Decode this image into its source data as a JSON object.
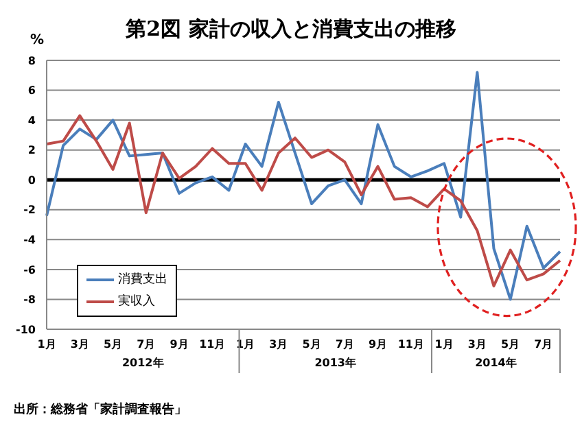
{
  "chart_data": {
    "type": "line",
    "title": "第2図  家計の収入と消費支出の推移",
    "ylabel": "%",
    "categories": [
      "1月",
      null,
      "3月",
      null,
      "5月",
      null,
      "7月",
      null,
      "9月",
      null,
      "11月",
      null,
      "1月",
      null,
      "3月",
      null,
      "5月",
      null,
      "7月",
      null,
      "9月",
      null,
      "11月",
      null,
      "1月",
      null,
      "3月",
      null,
      "5月",
      null,
      "7月",
      null
    ],
    "series": [
      {
        "name": "消費支出",
        "color": "#4a7ebb",
        "values": [
          -2.4,
          2.3,
          3.4,
          2.7,
          4.0,
          1.6,
          1.7,
          1.8,
          -0.9,
          -0.2,
          0.2,
          -0.7,
          2.4,
          0.9,
          5.2,
          1.8,
          -1.6,
          -0.4,
          0.0,
          -1.6,
          3.7,
          0.9,
          0.2,
          0.6,
          1.1,
          -2.5,
          7.2,
          -4.6,
          -8.0,
          -3.1,
          -5.9,
          -4.8
        ]
      },
      {
        "name": "実収入",
        "color": "#be4b48",
        "values": [
          2.4,
          2.6,
          4.3,
          2.6,
          0.7,
          3.8,
          -2.2,
          1.8,
          0.1,
          0.9,
          2.1,
          1.1,
          1.1,
          -0.7,
          1.8,
          2.8,
          1.5,
          2.0,
          1.2,
          -1.0,
          0.9,
          -1.3,
          -1.2,
          -1.8,
          -0.6,
          -1.4,
          -3.4,
          -7.1,
          -4.7,
          -6.7,
          -6.3,
          -5.4
        ]
      }
    ],
    "ylim": [
      -10,
      8
    ],
    "yticks": [
      -10,
      -8,
      -6,
      -4,
      -2,
      0,
      2,
      4,
      6,
      8
    ],
    "grid": "y",
    "legend": "bottom left",
    "ref_lines": [
      {
        "axis": "y",
        "value": 0,
        "color": "#000000"
      }
    ],
    "annotations": [
      "2012年",
      "2013年",
      "2014年",
      "出所：総務省「家計調査報告」"
    ]
  }
}
